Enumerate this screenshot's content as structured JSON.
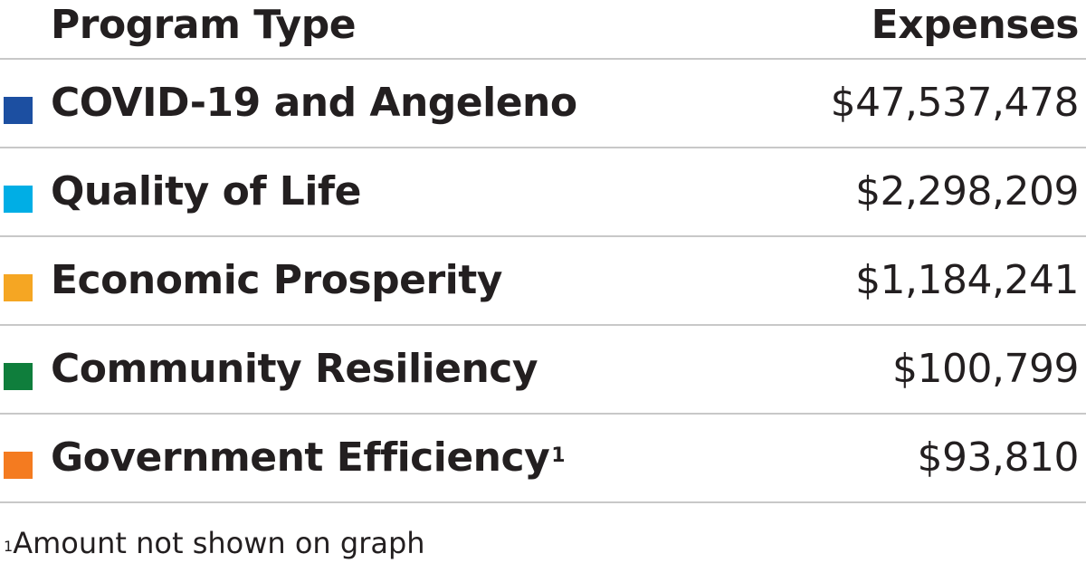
{
  "chart_data": {
    "type": "table",
    "columns": [
      "Program Type",
      "Expenses"
    ],
    "rows": [
      {
        "label": "COVID-19 and Angeleno",
        "superscript": "",
        "value": 47537478,
        "display": "$47,537,478",
        "color": "#1c4fa1"
      },
      {
        "label": "Quality of Life",
        "superscript": "",
        "value": 2298209,
        "display": "$2,298,209",
        "color": "#00aee5"
      },
      {
        "label": "Economic Prosperity",
        "superscript": "",
        "value": 1184241,
        "display": "$1,184,241",
        "color": "#f5a623"
      },
      {
        "label": "Community Resiliency",
        "superscript": "",
        "value": 100799,
        "display": "$100,799",
        "color": "#0f7e3c"
      },
      {
        "label": "Government Efficiency",
        "superscript": "1",
        "value": 93810,
        "display": "$93,810",
        "color": "#f47b20"
      }
    ],
    "footnote": {
      "marker": "1",
      "text": "Amount not shown on graph"
    }
  }
}
